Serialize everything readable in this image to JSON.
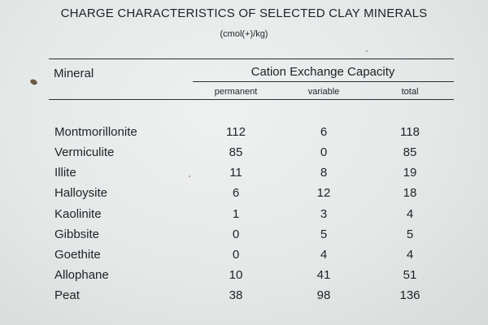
{
  "table": {
    "title": "CHARGE CHARACTERISTICS OF SELECTED CLAY MINERALS",
    "subtitle": "(cmol(+)/kg)",
    "header": {
      "mineral": "Mineral",
      "group": "Cation Exchange Capacity",
      "permanent": "permanent",
      "variable": "variable",
      "total": "total"
    },
    "rows": [
      {
        "mineral": "Montmorillonite",
        "permanent": "112",
        "variable": "6",
        "total": "118"
      },
      {
        "mineral": "Vermiculite",
        "permanent": "85",
        "variable": "0",
        "total": "85"
      },
      {
        "mineral": "Illite",
        "permanent": "11",
        "variable": "8",
        "total": "19"
      },
      {
        "mineral": "Halloysite",
        "permanent": "6",
        "variable": "12",
        "total": "18"
      },
      {
        "mineral": "Kaolinite",
        "permanent": "1",
        "variable": "3",
        "total": "4"
      },
      {
        "mineral": "Gibbsite",
        "permanent": "0",
        "variable": "5",
        "total": "5"
      },
      {
        "mineral": "Goethite",
        "permanent": "0",
        "variable": "4",
        "total": "4"
      },
      {
        "mineral": "Allophane",
        "permanent": "10",
        "variable": "41",
        "total": "51"
      },
      {
        "mineral": "Peat",
        "permanent": "38",
        "variable": "98",
        "total": "136"
      }
    ]
  }
}
